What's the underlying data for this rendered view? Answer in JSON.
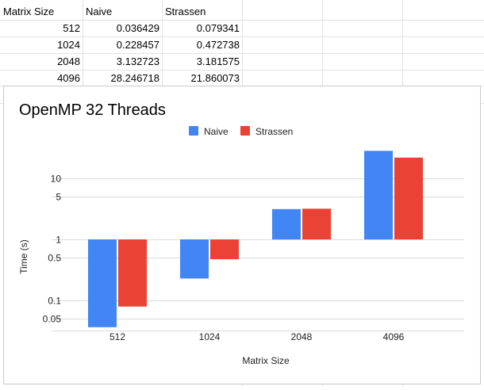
{
  "sheet": {
    "headers": [
      "Matrix Size",
      "Naive",
      "Strassen"
    ],
    "rows": [
      [
        "512",
        "0.036429",
        "0.079341"
      ],
      [
        "1024",
        "0.228457",
        "0.472738"
      ],
      [
        "2048",
        "3.132723",
        "3.181575"
      ],
      [
        "4096",
        "28.246718",
        "21.860073"
      ]
    ]
  },
  "chart_data": {
    "type": "bar",
    "title": "OpenMP 32 Threads",
    "xlabel": "Matrix Size",
    "ylabel": "Time (s)",
    "categories": [
      "512",
      "1024",
      "2048",
      "4096"
    ],
    "series": [
      {
        "name": "Naive",
        "color": "#4285f4",
        "values": [
          0.036429,
          0.228457,
          3.132723,
          28.246718
        ]
      },
      {
        "name": "Strassen",
        "color": "#ea4335",
        "values": [
          0.079341,
          0.472738,
          3.181575,
          21.860073
        ]
      }
    ],
    "y_scale": "log",
    "baseline": 1,
    "ylim": [
      0.03,
      50
    ],
    "yticks": [
      0.05,
      0.1,
      0.5,
      1,
      5,
      10
    ],
    "ytick_labels": [
      "0.05",
      "0.1",
      "0.5",
      "1",
      "5",
      "10"
    ],
    "legend_position": "top-center",
    "grid": true
  }
}
